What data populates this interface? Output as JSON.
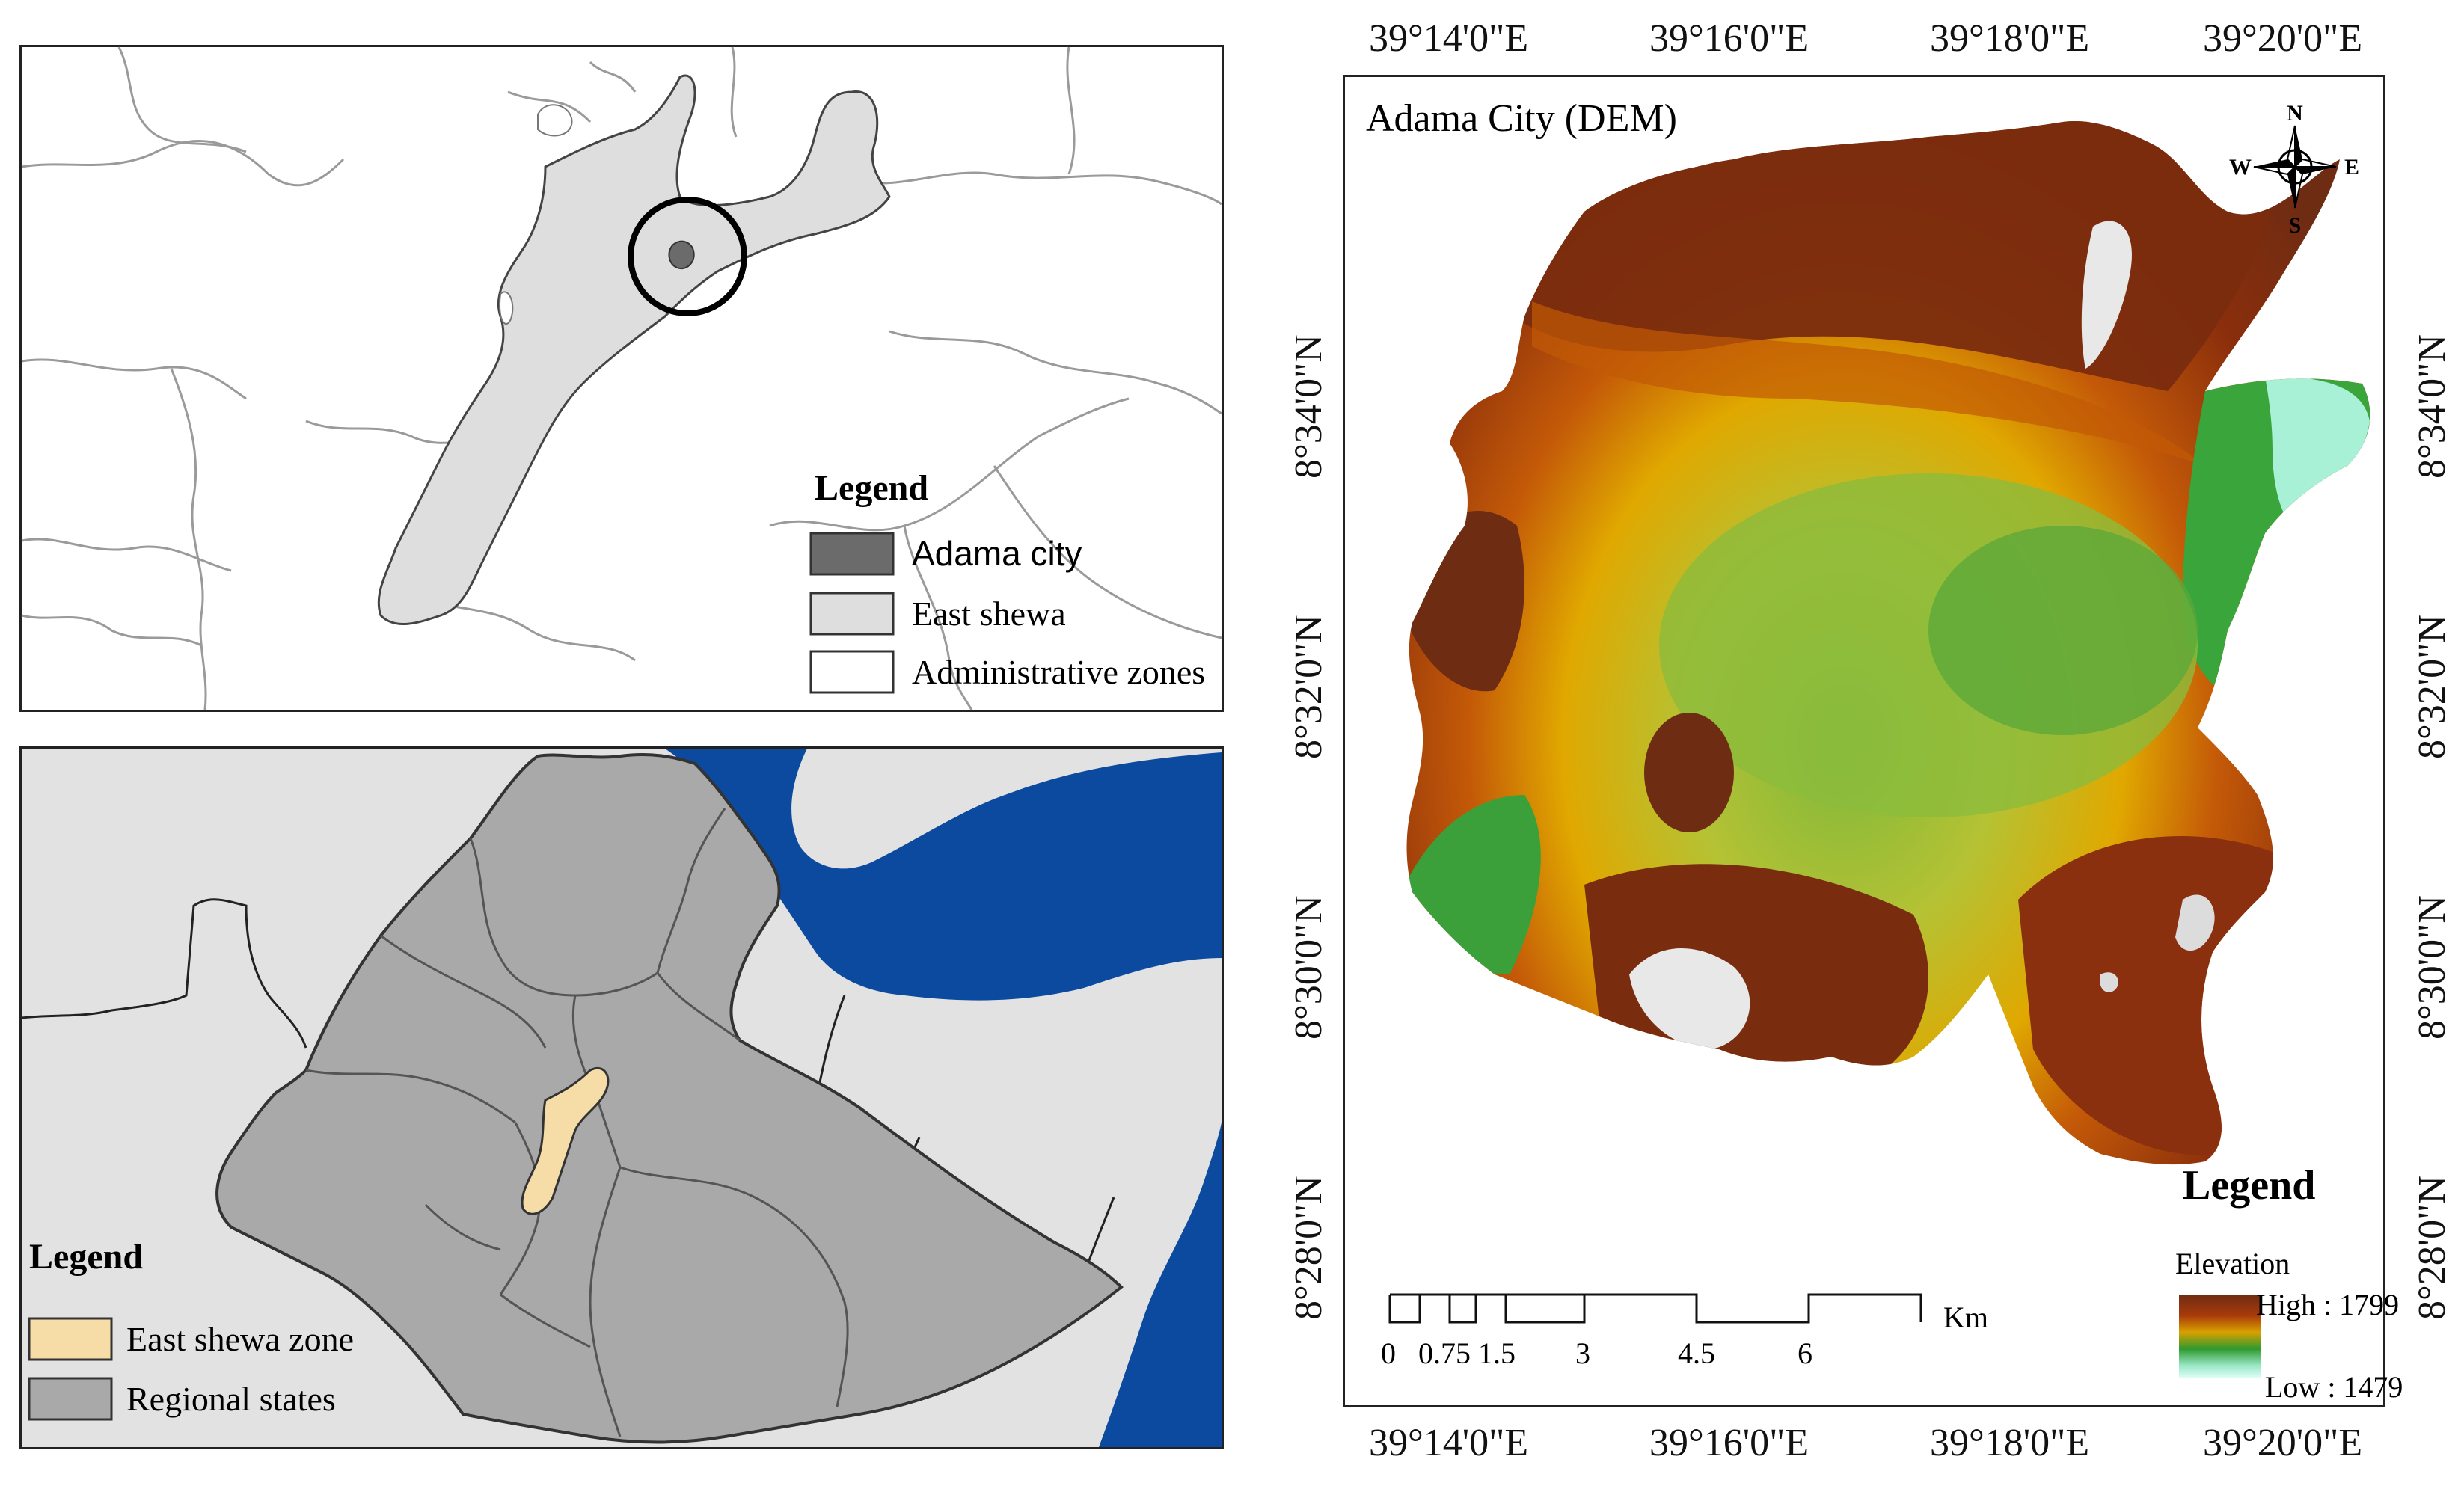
{
  "zones_map": {
    "legend_title": "Legend",
    "legend_items": [
      {
        "label": "Adama city",
        "color": "#6b6b6b"
      },
      {
        "label": "East shewa",
        "color": "#dedede"
      },
      {
        "label": "Administrative zones",
        "color": "#ffffff"
      }
    ]
  },
  "ethiopia_map": {
    "legend_title": "Legend",
    "legend_items": [
      {
        "label": "East shewa zone",
        "color": "#f6dca6"
      },
      {
        "label": "Regional states",
        "color": "#a9a9a9"
      }
    ],
    "water_color": "#0b4a9e",
    "country_color": "#a9a9a9",
    "background_color": "#e2e2e2"
  },
  "dem_map": {
    "title": "Adama City (DEM)",
    "north_arrow": {
      "n": "N",
      "s": "S",
      "e": "E",
      "w": "W"
    },
    "legend_title": "Legend",
    "elevation_label": "Elevation",
    "high_label": "High : 1799",
    "low_label": "Low : 1479",
    "ramp_colors": [
      "#6e2c12",
      "#a83a0a",
      "#d8a000",
      "#2f9a2f",
      "#9be8c8",
      "#e0fff8"
    ],
    "scale_bar": {
      "ticks": [
        "0",
        "0.75",
        "1.5",
        "3",
        "4.5",
        "6"
      ],
      "unit": "Km"
    },
    "lon_labels": [
      "39°14'0\"E",
      "39°16'0\"E",
      "39°18'0\"E",
      "39°20'0\"E"
    ],
    "lat_labels": [
      "8°34'0\"N",
      "8°32'0\"N",
      "8°30'0\"N",
      "8°28'0\"N"
    ]
  }
}
